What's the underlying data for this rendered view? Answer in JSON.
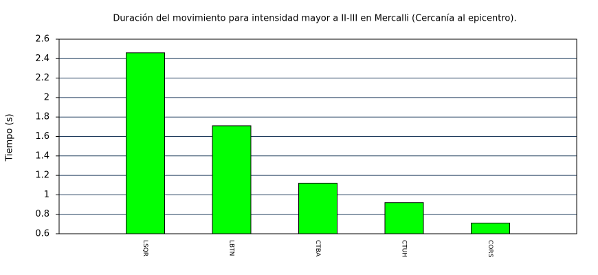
{
  "chart_data": {
    "type": "bar",
    "title": "Duración del movimiento para intensidad mayor a II-III en Mercalli (Cercanía al epicentro).",
    "y_label": "Tiempo (s)",
    "categories": [
      "LSQR",
      "LBTN",
      "CTBA",
      "CTUH",
      "CORS"
    ],
    "values": [
      2.46,
      1.71,
      1.12,
      0.92,
      0.71
    ],
    "color": "#00ff00",
    "ylim": [
      0.6,
      2.6
    ],
    "yticks": [
      0.6,
      0.8,
      1,
      1.2,
      1.4,
      1.6,
      1.8,
      2,
      2.2,
      2.4,
      2.6
    ],
    "grid": true
  }
}
